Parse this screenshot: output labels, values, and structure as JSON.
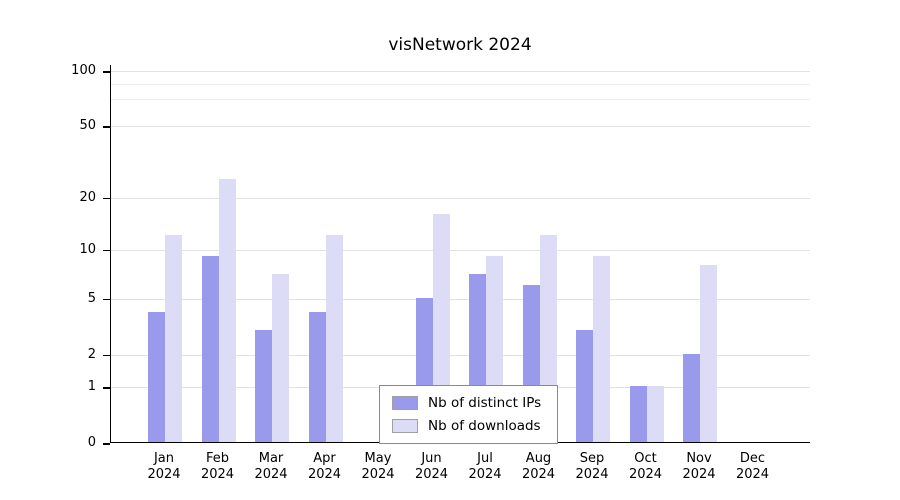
{
  "chart_data": {
    "type": "bar",
    "title": "visNetwork 2024",
    "scale": "log1p",
    "categories": [
      "Jan",
      "Feb",
      "Mar",
      "Apr",
      "May",
      "Jun",
      "Jul",
      "Aug",
      "Sep",
      "Oct",
      "Nov",
      "Dec"
    ],
    "category_year": "2024",
    "series": [
      {
        "name": "Nb of distinct IPs",
        "color": "#9a9aed",
        "values": [
          4,
          9,
          3,
          4,
          0,
          5,
          7,
          6,
          3,
          1,
          2,
          0
        ]
      },
      {
        "name": "Nb of downloads",
        "color": "#dcdcf7",
        "values": [
          12,
          25,
          7,
          12,
          0,
          16,
          9,
          12,
          9,
          1,
          8,
          0
        ]
      }
    ],
    "y_ticks": [
      0,
      1,
      2,
      5,
      10,
      20,
      50,
      100
    ],
    "gridlines": [
      1,
      2,
      5,
      10,
      20,
      50,
      100
    ],
    "minor_gridlines": [
      70,
      85
    ],
    "ylim": [
      0,
      110
    ],
    "grid": true,
    "legend_position": "bottom-center-inside",
    "background": "#ffffff"
  }
}
